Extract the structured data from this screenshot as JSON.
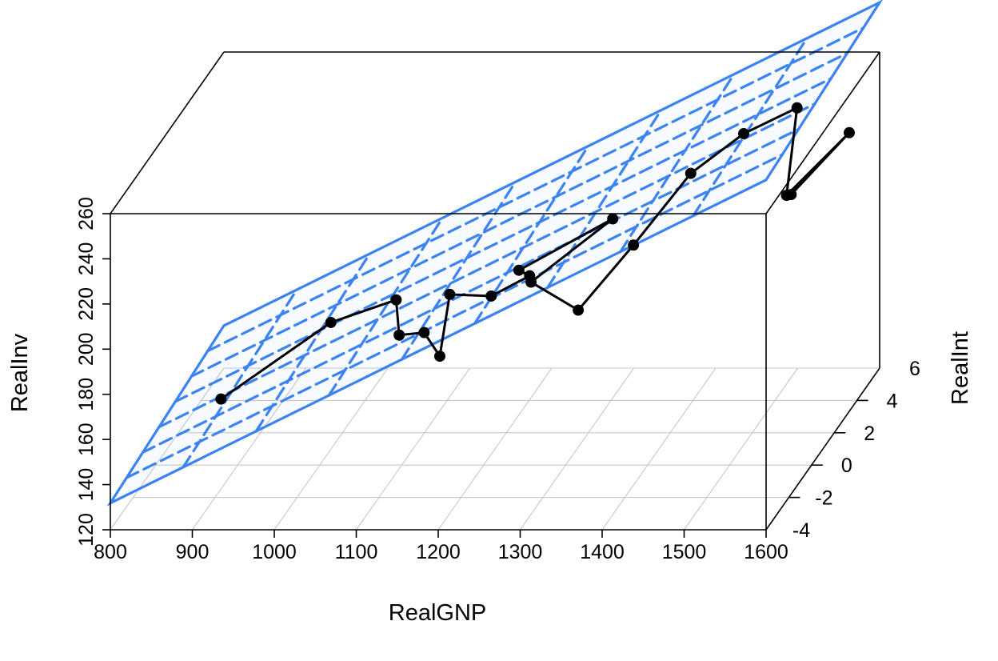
{
  "chart_data": {
    "type": "scatter",
    "subtype": "3d-scatter-with-regression-plane",
    "title": "",
    "xlabel": "RealGNP",
    "ylabel": "RealInt",
    "zlabel": "RealInv",
    "xlim": [
      800,
      1600
    ],
    "ylim": [
      -4,
      6
    ],
    "zlim": [
      120,
      260
    ],
    "x_ticks": [
      "800",
      "900",
      "1000",
      "1100",
      "1200",
      "1300",
      "1400",
      "1500",
      "1600"
    ],
    "y_ticks": [
      "-4",
      "-2",
      "0",
      "2",
      "4",
      "6"
    ],
    "z_ticks": [
      "120",
      "140",
      "160",
      "180",
      "200",
      "220",
      "240",
      "260"
    ],
    "x_tick_values": [
      800,
      900,
      1000,
      1100,
      1200,
      1300,
      1400,
      1500,
      1600
    ],
    "y_tick_values": [
      -4,
      -2,
      0,
      2,
      4,
      6
    ],
    "z_tick_values": [
      120,
      140,
      160,
      180,
      200,
      220,
      240,
      260
    ],
    "grid": true,
    "points_connected": true,
    "regression_plane": {
      "intercept": -8.5,
      "coef_x": 0.1789,
      "coef_y": 0.7,
      "residual_lines": true
    },
    "points": [
      {
        "x": 910,
        "y": -2.2,
        "z": 165
      },
      {
        "x": 990,
        "y": 1.7,
        "z": 171
      },
      {
        "x": 1060,
        "y": 2.4,
        "z": 176
      },
      {
        "x": 1090,
        "y": 0.5,
        "z": 174
      },
      {
        "x": 1126,
        "y": 0.1,
        "z": 178
      },
      {
        "x": 1177,
        "y": -2.2,
        "z": 184
      },
      {
        "x": 1142,
        "y": 1.2,
        "z": 187
      },
      {
        "x": 1194,
        "y": 1.1,
        "z": 187
      },
      {
        "x": 1270,
        "y": -1.0,
        "z": 211
      },
      {
        "x": 1225,
        "y": 1.3,
        "z": 197
      },
      {
        "x": 1309,
        "y": 3.5,
        "z": 204
      },
      {
        "x": 1219,
        "y": 2.8,
        "z": 181
      },
      {
        "x": 1260,
        "y": 4.0,
        "z": 160
      },
      {
        "x": 1380,
        "y": 0.2,
        "z": 216
      },
      {
        "x": 1400,
        "y": 3.8,
        "z": 222
      },
      {
        "x": 1448,
        "y": 5.0,
        "z": 231
      },
      {
        "x": 1520,
        "y": 4.5,
        "z": 246
      },
      {
        "x": 1528,
        "y": 3.0,
        "z": 218
      },
      {
        "x": 1574,
        "y": 5.2,
        "z": 230
      },
      {
        "x": 1589,
        "y": -1.0,
        "z": 247
      }
    ]
  },
  "colors": {
    "plane": "#3b83f0",
    "points": "#000000",
    "grid": "#c8c8c8",
    "box": "#000000"
  }
}
